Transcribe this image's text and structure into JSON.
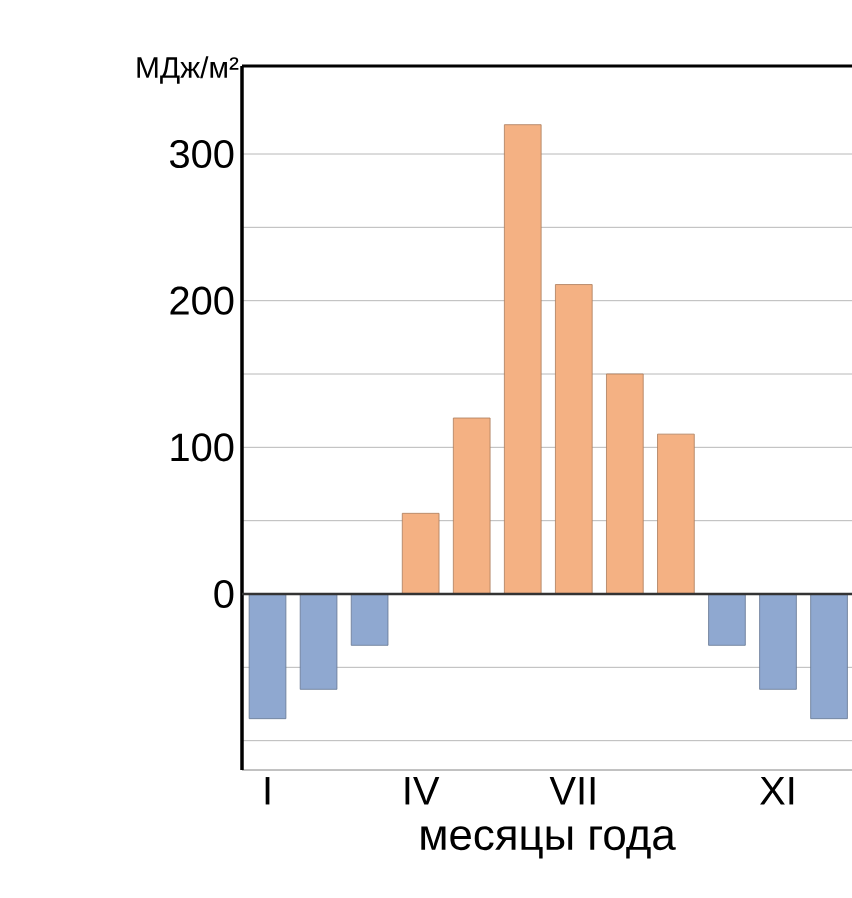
{
  "chart_data": {
    "type": "bar",
    "ylabel": "МДж/м²",
    "xlabel": "месяцы года",
    "categories": [
      "I",
      null,
      null,
      "IV",
      null,
      null,
      "VII",
      null,
      null,
      null,
      "XI",
      null
    ],
    "values": [
      -85,
      -65,
      -35,
      55,
      120,
      320,
      211,
      150,
      109,
      -35,
      -65,
      -85
    ],
    "colors": [
      "#8fa8d0",
      "#8fa8d0",
      "#8fa8d0",
      "#f4b183",
      "#f4b183",
      "#f4b183",
      "#f4b183",
      "#f4b183",
      "#f4b183",
      "#8fa8d0",
      "#8fa8d0",
      "#8fa8d0"
    ],
    "ylim": [
      -120,
      360
    ],
    "yticks": [
      0,
      100,
      200,
      300,
      {
        "value": -100,
        "label": null
      },
      {
        "value": -50,
        "label": null
      },
      {
        "value": 50,
        "label": null
      },
      {
        "value": 150,
        "label": null
      },
      {
        "value": 250,
        "label": null
      }
    ],
    "grid": "y"
  }
}
